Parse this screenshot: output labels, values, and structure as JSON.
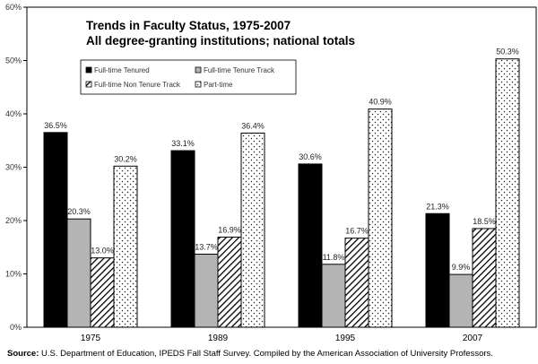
{
  "chart_data": {
    "type": "bar",
    "title": "Trends in Faculty Status, 1975-2007",
    "subtitle": "All degree-granting institutions; national totals",
    "categories": [
      "1975",
      "1989",
      "1995",
      "2007"
    ],
    "series": [
      {
        "name": "Full-time Tenured",
        "values": [
          36.5,
          33.1,
          30.6,
          21.3
        ],
        "labels": [
          "36.5%",
          "33.1%",
          "30.6%",
          "21.3%"
        ],
        "pattern": "solid-black"
      },
      {
        "name": "Full-time Tenure Track",
        "values": [
          20.3,
          13.7,
          11.8,
          9.9
        ],
        "labels": [
          "20.3%",
          "13.7%",
          "11.8%",
          "9.9%"
        ],
        "pattern": "solid-gray"
      },
      {
        "name": "Full-time Non Tenure Track",
        "values": [
          13.0,
          16.9,
          16.7,
          18.5
        ],
        "labels": [
          "13.0%",
          "16.9%",
          "16.7%",
          "18.5%"
        ],
        "pattern": "diagonal-hatch"
      },
      {
        "name": "Part-time",
        "values": [
          30.2,
          36.4,
          40.9,
          50.3
        ],
        "labels": [
          "30.2%",
          "36.4%",
          "40.9%",
          "50.3%"
        ],
        "pattern": "dotted"
      }
    ],
    "ylim": [
      0,
      60
    ],
    "yticks": [
      0,
      10,
      20,
      30,
      40,
      50,
      60
    ],
    "ytick_labels": [
      "0%",
      "10%",
      "20%",
      "30%",
      "40%",
      "50%",
      "60%"
    ],
    "xlabel": "",
    "ylabel": "",
    "legend_position": "upper-center",
    "grid": false,
    "colors": {
      "tenured": "#000000",
      "tenure_track": "#b4b4b4",
      "axis": "#000000"
    }
  },
  "source": {
    "label": "Source:",
    "text": "U.S. Department of Education, IPEDS Fall Staff Survey. Compiled by the American Association of University Professors."
  }
}
